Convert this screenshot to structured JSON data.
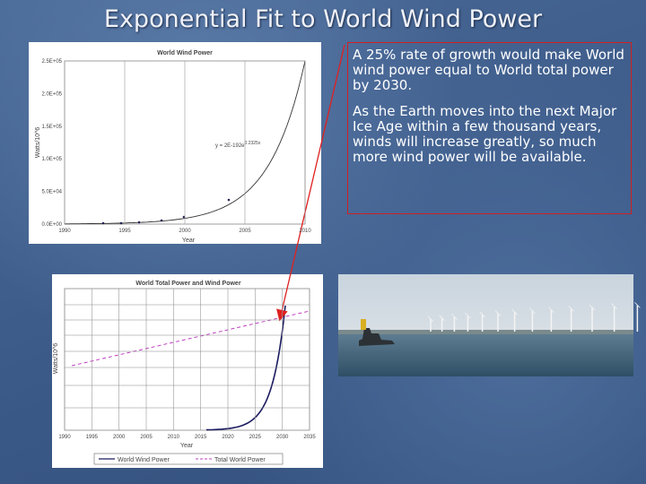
{
  "title": "Exponential Fit to World Wind Power",
  "text_box": {
    "paragraphs": [
      "A 25% rate of growth would make World wind power equal to World total power by 2030.",
      "As the Earth moves into the next Major Ice Age within a few thousand years, winds will increase greatly, so much more wind power will be available."
    ]
  },
  "top_chart": {
    "title": "World Wind Power",
    "x_label": "Year",
    "y_label": "Watts/10^6",
    "x_ticks": [
      "1990",
      "1995",
      "2000",
      "2005",
      "2010"
    ],
    "y_ticks": [
      "0.0E+00",
      "5.0E+04",
      "1.0E+05",
      "1.5E+05",
      "2.0E+05",
      "2.5E+05"
    ],
    "equation": "y = 2E-192e",
    "equation_exponent": "0.2325x"
  },
  "bottom_chart": {
    "title": "World Total Power and Wind Power",
    "x_label": "Year",
    "y_label": "Watts/10^6",
    "x_ticks": [
      "1990",
      "1995",
      "2000",
      "2005",
      "2010",
      "2015",
      "2020",
      "2025",
      "2030",
      "2035"
    ],
    "legend": [
      "World Wind Power",
      "Total World Power"
    ]
  }
}
